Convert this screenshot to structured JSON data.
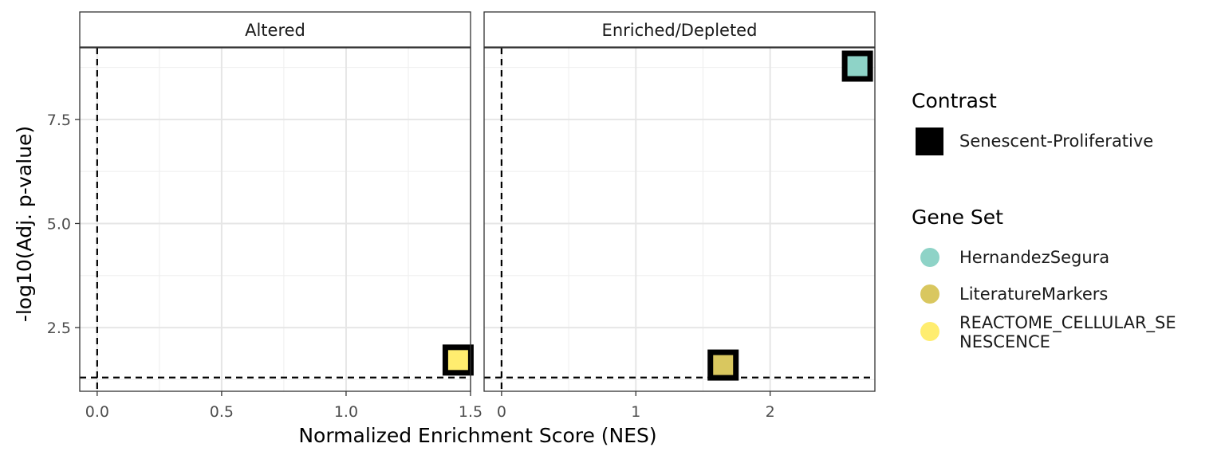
{
  "chart_data": {
    "type": "scatter",
    "ylabel": "-log10(Adj. p-value)",
    "xlabel": "Normalized Enrichment Score (NES)",
    "y_range": [
      0.97,
      9.22
    ],
    "y_ticks": [
      2.5,
      5.0,
      7.5
    ],
    "y_tick_labels": [
      "2.5",
      "5.0",
      "7.5"
    ],
    "reference_lines": {
      "x": 0,
      "y": 1.3
    },
    "grid": true,
    "panels": [
      {
        "title": "Altered",
        "x_range": [
          -0.07,
          1.5
        ],
        "x_ticks": [
          0.0,
          0.5,
          1.0,
          1.5
        ],
        "x_tick_labels": [
          "0.0",
          "0.5",
          "1.0",
          "1.5"
        ],
        "points": [
          {
            "gene_set": "REACTOME_CELLULAR_SENESCENCE",
            "contrast": "Senescent-Proliferative",
            "x": 1.45,
            "y": 1.72
          }
        ]
      },
      {
        "title": "Enriched/Depleted",
        "x_range": [
          -0.13,
          2.78
        ],
        "x_ticks": [
          0,
          1,
          2
        ],
        "x_tick_labels": [
          "0",
          "1",
          "2"
        ],
        "points": [
          {
            "gene_set": "HernandezSegura",
            "contrast": "Senescent-Proliferative",
            "x": 2.65,
            "y": 8.78
          },
          {
            "gene_set": "LiteratureMarkers",
            "contrast": "Senescent-Proliferative",
            "x": 1.65,
            "y": 1.6
          }
        ]
      }
    ],
    "legends": [
      {
        "title": "Contrast",
        "entries": [
          {
            "label": "Senescent-Proliferative",
            "shape": "square",
            "color": "#000000"
          }
        ]
      },
      {
        "title": "Gene Set",
        "entries": [
          {
            "label": "HernandezSegura",
            "shape": "circle",
            "color": "#8ED3C7"
          },
          {
            "label": "LiteratureMarkers",
            "shape": "circle",
            "color": "#D9C75F"
          },
          {
            "label": "REACTOME_CELLULAR_SE\nNESCENCE",
            "shape": "circle",
            "color": "#FFED6F"
          }
        ]
      }
    ],
    "legend_position": "right"
  }
}
